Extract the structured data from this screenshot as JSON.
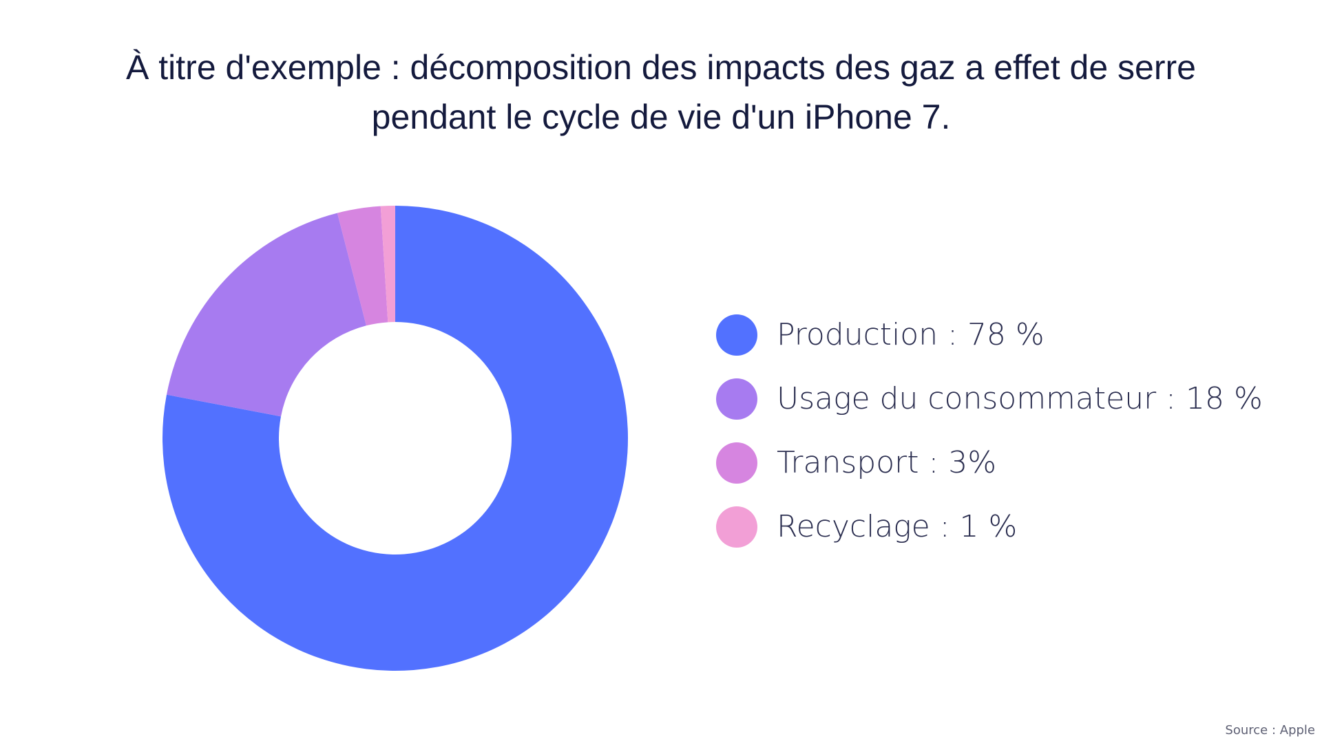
{
  "title_line1": "À titre d'exemple : décomposition des impacts des gaz a effet de serre",
  "title_line2": "pendant le cycle de vie d'un iPhone 7.",
  "source": "Source : Apple",
  "chart_data": {
    "type": "pie",
    "variant": "donut",
    "title": "À titre d'exemple : décomposition des impacts des gaz a effet de serre pendant le cycle de vie d'un iPhone 7.",
    "categories": [
      "Production",
      "Usage du consommateur",
      "Transport",
      "Recyclage"
    ],
    "values": [
      78,
      18,
      3,
      1
    ],
    "unit": "%",
    "colors": [
      "#5271ff",
      "#a77bf0",
      "#d685e0",
      "#f29fd6"
    ],
    "legend_labels": [
      "Production : 78 %",
      "Usage du consommateur : 18 %",
      "Transport : 3%",
      "Recyclage : 1 %"
    ],
    "legend_placement": "right"
  }
}
